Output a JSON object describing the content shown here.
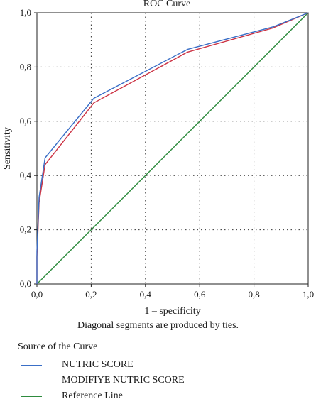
{
  "chart_data": {
    "type": "line",
    "title": "ROC Curve",
    "xlabel": "1 – specificity",
    "ylabel": "Sensitivity",
    "xlim": [
      0,
      1
    ],
    "ylim": [
      0,
      1
    ],
    "x_ticks": [
      "0,0",
      "0,2",
      "0,4",
      "0,6",
      "0,8",
      "1,0"
    ],
    "y_ticks": [
      "0,0",
      "0,2",
      "0,4",
      "0,6",
      "0,8",
      "1,0"
    ],
    "grid": "dotted",
    "note": "Diagonal segments are produced by ties.",
    "legend_title": "Source of the Curve",
    "series": [
      {
        "name": "NUTRIC SCORE",
        "color": "#3a6fc7",
        "points": [
          [
            0,
            0
          ],
          [
            0,
            0.12
          ],
          [
            0.008,
            0.32
          ],
          [
            0.03,
            0.465
          ],
          [
            0.21,
            0.685
          ],
          [
            0.555,
            0.865
          ],
          [
            0.87,
            0.948
          ],
          [
            1.0,
            1.0
          ]
        ]
      },
      {
        "name": "MODIFIYE NUTRIC SCORE",
        "color": "#cc3344",
        "points": [
          [
            0,
            0
          ],
          [
            0,
            0.1
          ],
          [
            0.008,
            0.3
          ],
          [
            0.03,
            0.44
          ],
          [
            0.21,
            0.668
          ],
          [
            0.555,
            0.855
          ],
          [
            0.87,
            0.944
          ],
          [
            1.0,
            1.0
          ]
        ]
      },
      {
        "name": "Reference Line",
        "color": "#2e8b3e",
        "points": [
          [
            0,
            0
          ],
          [
            1.0,
            1.0
          ]
        ]
      }
    ]
  }
}
